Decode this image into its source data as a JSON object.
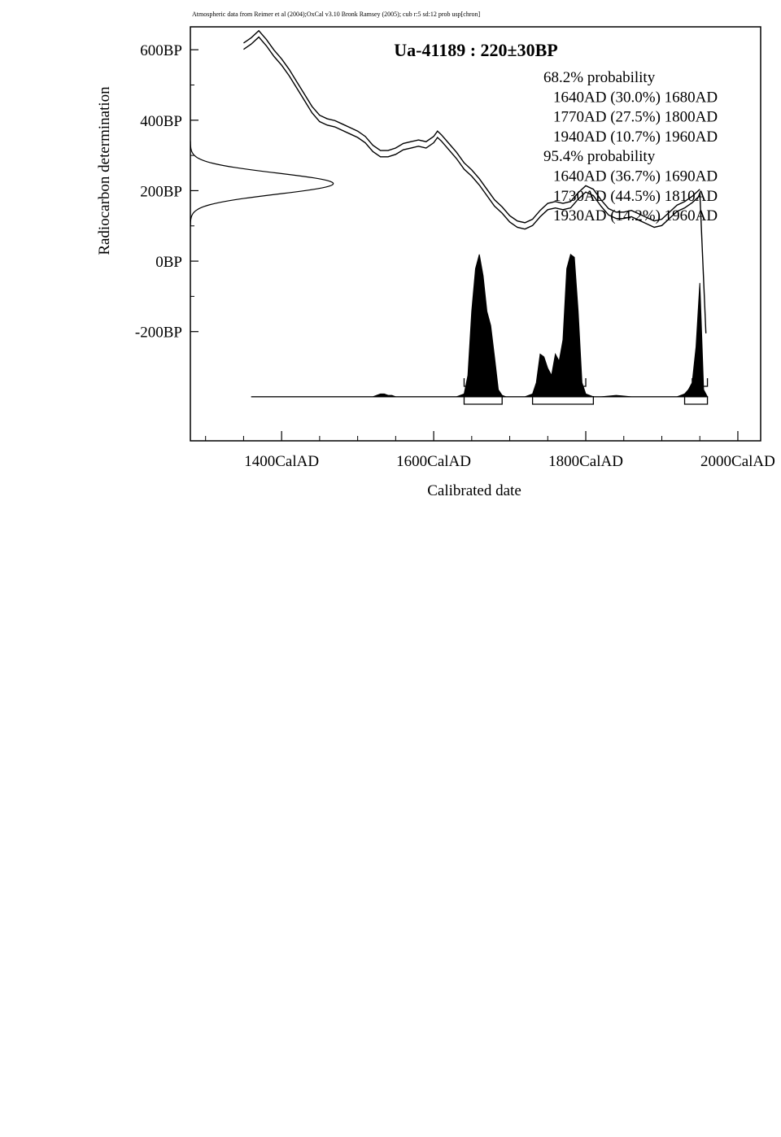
{
  "chart_data": {
    "type": "area",
    "header_note": "Atmospheric data from Reimer et al (2004);OxCal v3.10 Bronk Ramsey (2005); cub r:5 sd:12 prob usp[chron]",
    "title": "Ua-41189 : 220±30BP",
    "xlabel": "Calibrated date",
    "ylabel": "Radiocarbon determination",
    "xlim": [
      1280,
      2030
    ],
    "ylim": [
      -510,
      665
    ],
    "x_ticks": [
      {
        "value": 1400,
        "label": "1400CalAD"
      },
      {
        "value": 1600,
        "label": "1600CalAD"
      },
      {
        "value": 1800,
        "label": "1800CalAD"
      },
      {
        "value": 2000,
        "label": "2000CalAD"
      }
    ],
    "y_ticks": [
      {
        "value": 600,
        "label": "600BP"
      },
      {
        "value": 400,
        "label": "400BP"
      },
      {
        "value": 200,
        "label": "200BP"
      },
      {
        "value": 0,
        "label": "0BP"
      },
      {
        "value": -200,
        "label": "-200BP"
      }
    ],
    "grid": false,
    "legend_lines": [
      "68.2% probability",
      "1640AD (30.0%) 1680AD",
      "1770AD (27.5%) 1800AD",
      "1940AD (10.7%) 1960AD",
      "95.4% probability",
      "1640AD (36.7%) 1690AD",
      "1730AD (44.5%) 1810AD",
      "1930AD (14.2%) 1960AD"
    ],
    "legend_placement": "top-right",
    "calibration_curve": {
      "x": [
        1350,
        1360,
        1370,
        1380,
        1390,
        1400,
        1410,
        1420,
        1430,
        1440,
        1450,
        1460,
        1470,
        1480,
        1490,
        1500,
        1510,
        1520,
        1530,
        1540,
        1550,
        1560,
        1570,
        1580,
        1590,
        1600,
        1605,
        1610,
        1620,
        1630,
        1640,
        1650,
        1660,
        1670,
        1680,
        1690,
        1700,
        1710,
        1720,
        1730,
        1740,
        1750,
        1760,
        1770,
        1780,
        1790,
        1800,
        1810,
        1820,
        1830,
        1840,
        1850,
        1860,
        1870,
        1880,
        1890,
        1900,
        1910,
        1920,
        1930,
        1940,
        1950
      ],
      "y": [
        610,
        625,
        645,
        620,
        590,
        565,
        535,
        500,
        465,
        430,
        405,
        395,
        390,
        380,
        370,
        360,
        345,
        320,
        305,
        305,
        312,
        325,
        330,
        335,
        330,
        345,
        360,
        350,
        325,
        300,
        270,
        250,
        225,
        195,
        165,
        145,
        120,
        105,
        100,
        110,
        135,
        155,
        160,
        155,
        160,
        185,
        205,
        195,
        165,
        140,
        130,
        130,
        135,
        125,
        115,
        105,
        110,
        130,
        150,
        160,
        175,
        195
      ],
      "half_width": 9,
      "tail": {
        "x": [
          1950,
          1958
        ],
        "y": [
          195,
          -205
        ]
      }
    },
    "measurement": {
      "mean": 220,
      "sigma": 30,
      "peak_year": 1468,
      "start_year": 1280
    },
    "probability_distribution": {
      "baseline": -385,
      "x": [
        1360,
        1520,
        1525,
        1530,
        1535,
        1540,
        1545,
        1550,
        1560,
        1600,
        1630,
        1640,
        1645,
        1650,
        1655,
        1660,
        1665,
        1670,
        1675,
        1680,
        1685,
        1690,
        1695,
        1700,
        1720,
        1730,
        1735,
        1740,
        1745,
        1750,
        1755,
        1760,
        1765,
        1770,
        1775,
        1780,
        1785,
        1790,
        1795,
        1800,
        1805,
        1810,
        1815,
        1820,
        1840,
        1860,
        1900,
        1920,
        1930,
        1935,
        1940,
        1945,
        1950,
        1955,
        1958,
        1960
      ],
      "y": [
        0,
        0,
        0.01,
        0.02,
        0.02,
        0.01,
        0.01,
        0,
        0,
        0,
        0,
        0.02,
        0.15,
        0.6,
        0.9,
        1.0,
        0.85,
        0.6,
        0.5,
        0.28,
        0.05,
        0.01,
        0,
        0,
        0,
        0.02,
        0.1,
        0.3,
        0.28,
        0.2,
        0.15,
        0.3,
        0.25,
        0.4,
        0.9,
        1.0,
        0.98,
        0.6,
        0.1,
        0.02,
        0.01,
        0,
        0,
        0,
        0.01,
        0,
        0,
        0,
        0.02,
        0.05,
        0.1,
        0.35,
        0.8,
        0.05,
        0.02,
        0
      ]
    },
    "range_bars_68": [
      [
        1640,
        1680
      ],
      [
        1770,
        1800
      ],
      [
        1940,
        1960
      ]
    ],
    "range_bars_95": [
      [
        1640,
        1690
      ],
      [
        1730,
        1810
      ],
      [
        1930,
        1960
      ]
    ]
  }
}
